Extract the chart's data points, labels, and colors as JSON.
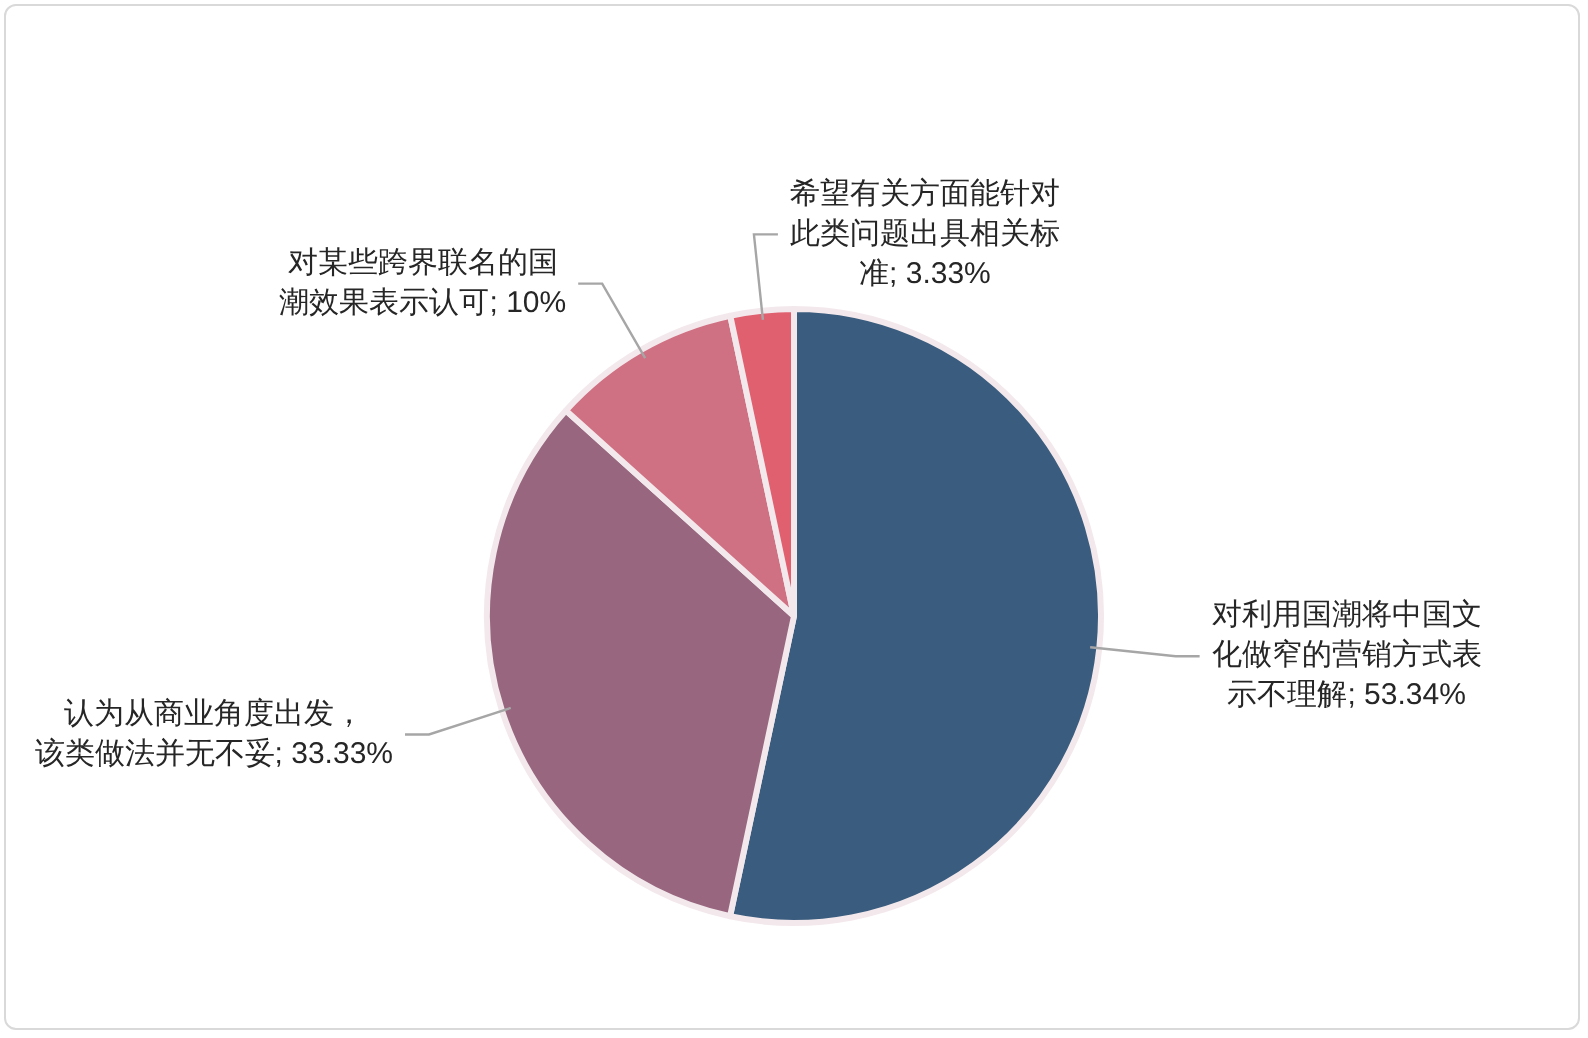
{
  "chart_data": {
    "type": "pie",
    "categories": [
      "对利用国潮将中国文化做窄的营销方式表示不理解",
      "认为从商业角度出发，该类做法并无不妥",
      "对某些跨界联名的国潮效果表示认可",
      "希望有关方面能针对此类问题出具相关标准"
    ],
    "values": [
      53.34,
      33.33,
      10,
      3.33
    ],
    "value_labels": [
      "53.34%",
      "33.33%",
      "10%",
      "3.33%"
    ],
    "colors": [
      "#3a5c7e",
      "#98667f",
      "#d07083",
      "#e06070"
    ],
    "legend": false
  }
}
